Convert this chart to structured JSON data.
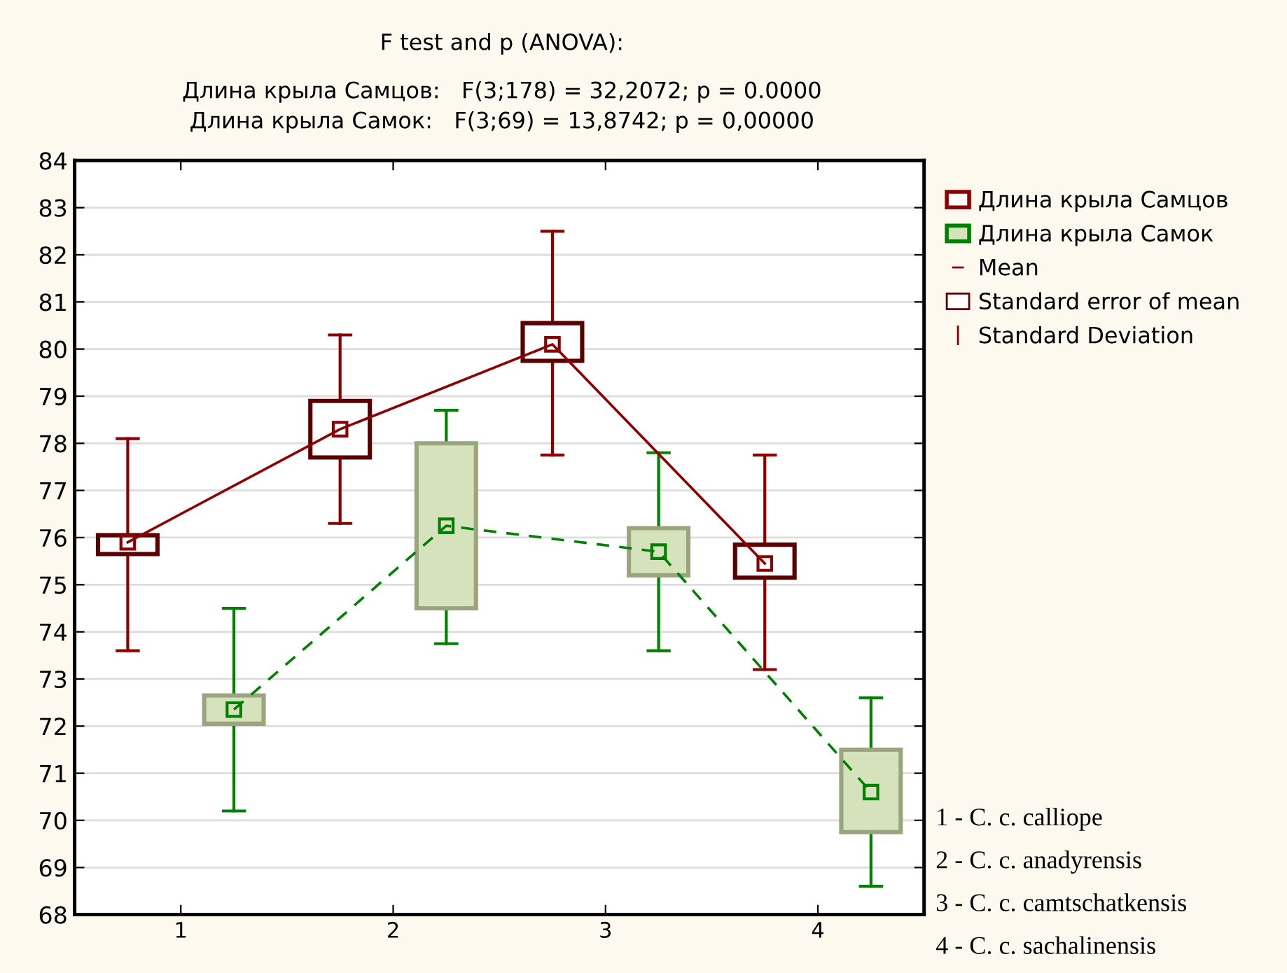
{
  "chart_data": {
    "type": "box",
    "title": "F test and p (ANOVA):",
    "subtitle": "Длина крыла Самцов:   F(3;178) = 32,2072; p = 0.0000\nДлина крыла Самок:   F(3;69) = 13,8742; p = 0,00000",
    "xlim": [
      0.5,
      4.5
    ],
    "xticks": [
      1,
      2,
      3,
      4
    ],
    "series": [
      {
        "name": "Длина крыла Самцов",
        "color": "#8b0000",
        "x": [
          0.75,
          1.75,
          2.75,
          3.75
        ],
        "colors": [
          "#ffffff",
          "#ffffff",
          "#ffffff",
          "#ffffff"
        ],
        "boxes": [
          {
            "low": 73.6,
            "q1": 75.65,
            "median": 75.9,
            "q3": 76.05,
            "high": 78.1
          },
          {
            "low": 76.3,
            "q1": 77.7,
            "median": 78.3,
            "q3": 78.9,
            "high": 80.3
          },
          {
            "low": 77.75,
            "q1": 79.75,
            "median": 80.1,
            "q3": 80.55,
            "high": 82.5
          },
          {
            "low": 73.2,
            "q1": 75.15,
            "median": 75.45,
            "q3": 75.85,
            "high": 77.75
          }
        ]
      },
      {
        "name": "Длина крыла Самок",
        "color": "#008000",
        "x": [
          1.25,
          2.25,
          3.25,
          4.25
        ],
        "colors": [
          "#d6e2bc",
          "#d6e2bc",
          "#d6e2bc",
          "#d6e2bc"
        ],
        "boxes": [
          {
            "low": 70.2,
            "q1": 72.05,
            "median": 72.35,
            "q3": 72.65,
            "high": 74.5
          },
          {
            "low": 73.75,
            "q1": 74.5,
            "median": 76.25,
            "q3": 78.0,
            "high": 78.7
          },
          {
            "low": 73.6,
            "q1": 75.2,
            "median": 75.7,
            "q3": 76.2,
            "high": 77.8
          },
          {
            "low": 68.6,
            "q1": 69.75,
            "median": 70.6,
            "q3": 71.5,
            "high": 72.6
          }
        ]
      },
      {
        "type": "line",
        "color": "#8b0000",
        "line_style": "solid",
        "marker": "none",
        "x": [
          0.75,
          1.75,
          2.75,
          3.75
        ],
        "values": [
          75.9,
          78.3,
          80.1,
          75.45
        ]
      },
      {
        "type": "line",
        "color": "#008000",
        "line_style": "dashed",
        "marker": "none",
        "x": [
          1.25,
          2.25,
          3.25,
          4.25
        ],
        "values": [
          72.35,
          76.25,
          75.7,
          70.6
        ]
      }
    ],
    "ylim": [
      68,
      84
    ],
    "yticks": [
      68,
      69,
      70,
      71,
      72,
      73,
      74,
      75,
      76,
      77,
      78,
      79,
      80,
      81,
      82,
      83,
      84
    ],
    "grid": "y",
    "legend": "top right",
    "marker": "square",
    "annotations": [
      "Mean",
      "Standard error of mean",
      "Standard Deviation",
      "1 - C. c. calliope",
      "2 - C. c. anadyrensis",
      "3 - C. c. camtschatkensis",
      "4 - C. c. sachalinensis"
    ]
  }
}
